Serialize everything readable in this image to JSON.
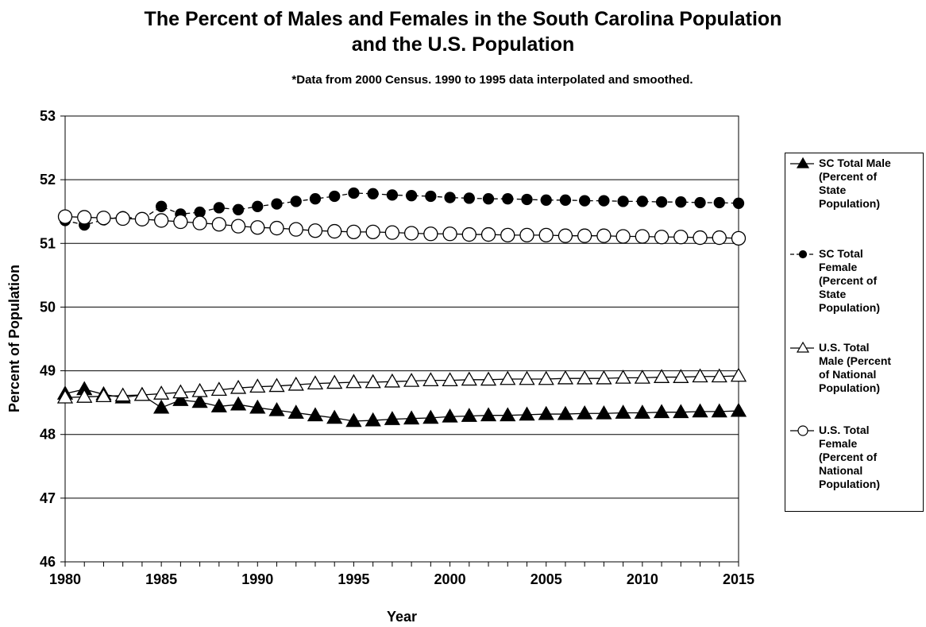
{
  "chart_data": {
    "type": "line",
    "title_lines": [
      "The Percent of Males and Females in the South Carolina Population",
      "and the U.S. Population"
    ],
    "subtitle": "*Data from 2000 Census.  1990 to 1995 data interpolated and smoothed.",
    "xlabel": "Year",
    "ylabel": "Percent of Population",
    "xlim": [
      1980,
      2015
    ],
    "ylim": [
      46,
      53
    ],
    "xticks": [
      1980,
      1985,
      1990,
      1995,
      2000,
      2005,
      2010,
      2015
    ],
    "yticks": [
      46,
      47,
      48,
      49,
      50,
      51,
      52,
      53
    ],
    "grid": "horizontal",
    "legend_position": "right",
    "x": [
      1980,
      1981,
      1982,
      1983,
      1984,
      1985,
      1986,
      1987,
      1988,
      1989,
      1990,
      1991,
      1992,
      1993,
      1994,
      1995,
      1996,
      1997,
      1998,
      1999,
      2000,
      2001,
      2002,
      2003,
      2004,
      2005,
      2006,
      2007,
      2008,
      2009,
      2010,
      2011,
      2012,
      2013,
      2014,
      2015
    ],
    "series": [
      {
        "name": "SC Total Male (Percent of State Population)",
        "marker": "filled-triangle",
        "line": "solid",
        "values": [
          48.64,
          48.71,
          48.63,
          48.58,
          48.62,
          48.42,
          48.54,
          48.51,
          48.44,
          48.47,
          48.42,
          48.38,
          48.34,
          48.3,
          48.26,
          48.21,
          48.22,
          48.24,
          48.25,
          48.26,
          48.28,
          48.29,
          48.3,
          48.3,
          48.31,
          48.32,
          48.32,
          48.33,
          48.33,
          48.34,
          48.34,
          48.35,
          48.35,
          48.36,
          48.36,
          48.37
        ]
      },
      {
        "name": "SC Total Female (Percent of State Population)",
        "marker": "filled-circle",
        "line": "dashed",
        "values": [
          51.36,
          51.29,
          51.37,
          51.42,
          51.38,
          51.58,
          51.46,
          51.49,
          51.56,
          51.53,
          51.58,
          51.62,
          51.66,
          51.7,
          51.74,
          51.79,
          51.78,
          51.76,
          51.75,
          51.74,
          51.72,
          51.71,
          51.7,
          51.7,
          51.69,
          51.68,
          51.68,
          51.67,
          51.67,
          51.66,
          51.66,
          51.65,
          51.65,
          51.64,
          51.64,
          51.63
        ]
      },
      {
        "name": "U.S. Total Male (Percent of National Population)",
        "marker": "open-triangle",
        "line": "solid",
        "values": [
          48.58,
          48.59,
          48.6,
          48.61,
          48.62,
          48.64,
          48.66,
          48.68,
          48.7,
          48.73,
          48.75,
          48.76,
          48.78,
          48.8,
          48.81,
          48.82,
          48.82,
          48.83,
          48.84,
          48.85,
          48.85,
          48.86,
          48.86,
          48.87,
          48.87,
          48.87,
          48.88,
          48.88,
          48.88,
          48.89,
          48.89,
          48.9,
          48.9,
          48.91,
          48.91,
          48.92
        ]
      },
      {
        "name": "U.S. Total Female (Percent of National Population)",
        "marker": "open-circle",
        "line": "solid",
        "values": [
          51.42,
          51.41,
          51.4,
          51.39,
          51.38,
          51.36,
          51.34,
          51.32,
          51.3,
          51.27,
          51.25,
          51.24,
          51.22,
          51.2,
          51.19,
          51.18,
          51.18,
          51.17,
          51.16,
          51.15,
          51.15,
          51.14,
          51.14,
          51.13,
          51.13,
          51.13,
          51.12,
          51.12,
          51.12,
          51.11,
          51.11,
          51.1,
          51.1,
          51.09,
          51.09,
          51.08
        ]
      }
    ],
    "legend_lines": [
      [
        "SC Total Male",
        "(Percent of",
        "State",
        "Population)"
      ],
      [
        "SC Total",
        "Female",
        "(Percent of",
        "State",
        "Population)"
      ],
      [
        "U.S. Total",
        "Male (Percent",
        "of National",
        "Population)"
      ],
      [
        "U.S. Total",
        "Female",
        "(Percent of",
        "National",
        "Population)"
      ]
    ]
  }
}
